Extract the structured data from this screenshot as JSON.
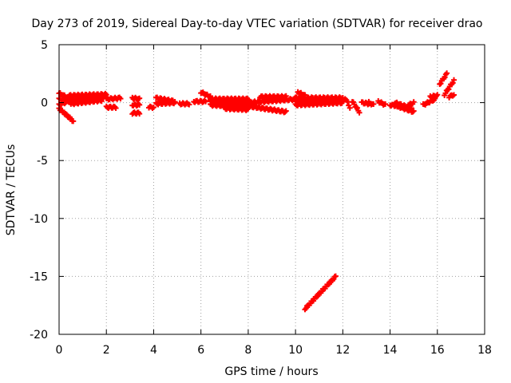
{
  "chart_data": {
    "type": "scatter",
    "title": "Day 273 of 2019, Sidereal Day-to-day VTEC variation (SDTVAR) for receiver drao",
    "xlabel": "GPS time / hours",
    "ylabel": "SDTVAR / TECUs",
    "xlim": [
      0,
      18
    ],
    "ylim": [
      -20,
      5
    ],
    "xticks": [
      0,
      2,
      4,
      6,
      8,
      10,
      12,
      14,
      16,
      18
    ],
    "yticks": [
      5,
      0,
      -5,
      -10,
      -15,
      -20
    ],
    "grid": true,
    "marker": "plus",
    "color": "#ff0000",
    "segments": [
      {
        "x": [
          0.0,
          0.6
        ],
        "y": [
          0.8,
          0.2
        ]
      },
      {
        "x": [
          0.0,
          0.6
        ],
        "y": [
          0.3,
          0.0
        ]
      },
      {
        "x": [
          0.0,
          0.6
        ],
        "y": [
          -0.2,
          0.3
        ]
      },
      {
        "x": [
          0.0,
          0.6
        ],
        "y": [
          -0.5,
          -1.6
        ]
      },
      {
        "x": [
          0.5,
          2.0
        ],
        "y": [
          0.2,
          0.5
        ]
      },
      {
        "x": [
          0.4,
          2.0
        ],
        "y": [
          0.6,
          0.7
        ]
      },
      {
        "x": [
          0.5,
          1.8
        ],
        "y": [
          -0.1,
          0.2
        ]
      },
      {
        "x": [
          2.0,
          2.6
        ],
        "y": [
          0.3,
          0.4
        ]
      },
      {
        "x": [
          2.0,
          2.4
        ],
        "y": [
          -0.4,
          -0.4
        ]
      },
      {
        "x": [
          3.1,
          3.4
        ],
        "y": [
          0.4,
          0.3
        ]
      },
      {
        "x": [
          3.1,
          3.4
        ],
        "y": [
          -0.2,
          -0.2
        ]
      },
      {
        "x": [
          3.1,
          3.4
        ],
        "y": [
          -0.9,
          -0.9
        ]
      },
      {
        "x": [
          3.8,
          4.0
        ],
        "y": [
          -0.4,
          -0.4
        ]
      },
      {
        "x": [
          4.1,
          4.9
        ],
        "y": [
          0.4,
          0.1
        ]
      },
      {
        "x": [
          4.1,
          4.9
        ],
        "y": [
          -0.1,
          0.0
        ]
      },
      {
        "x": [
          5.1,
          5.5
        ],
        "y": [
          -0.1,
          -0.1
        ]
      },
      {
        "x": [
          5.7,
          6.2
        ],
        "y": [
          0.1,
          0.1
        ]
      },
      {
        "x": [
          6.0,
          6.4
        ],
        "y": [
          0.9,
          0.5
        ]
      },
      {
        "x": [
          6.4,
          8.0
        ],
        "y": [
          0.3,
          0.3
        ]
      },
      {
        "x": [
          6.4,
          8.0
        ],
        "y": [
          0.1,
          0.0
        ]
      },
      {
        "x": [
          6.4,
          8.0
        ],
        "y": [
          -0.2,
          -0.4
        ]
      },
      {
        "x": [
          7.0,
          8.0
        ],
        "y": [
          -0.5,
          -0.6
        ]
      },
      {
        "x": [
          8.0,
          9.6
        ],
        "y": [
          -0.3,
          -0.8
        ]
      },
      {
        "x": [
          8.0,
          10.0
        ],
        "y": [
          0.0,
          0.3
        ]
      },
      {
        "x": [
          8.5,
          9.6
        ],
        "y": [
          0.5,
          0.5
        ]
      },
      {
        "x": [
          10.0,
          12.0
        ],
        "y": [
          0.1,
          0.2
        ]
      },
      {
        "x": [
          10.0,
          12.0
        ],
        "y": [
          0.4,
          0.4
        ]
      },
      {
        "x": [
          10.0,
          12.0
        ],
        "y": [
          -0.2,
          0.0
        ]
      },
      {
        "x": [
          10.1,
          10.4
        ],
        "y": [
          0.9,
          0.6
        ]
      },
      {
        "x": [
          10.4,
          11.7
        ],
        "y": [
          -17.8,
          -15.0
        ]
      },
      {
        "x": [
          12.1,
          12.3
        ],
        "y": [
          0.4,
          -0.4
        ]
      },
      {
        "x": [
          12.4,
          12.7
        ],
        "y": [
          0.1,
          -0.8
        ]
      },
      {
        "x": [
          12.8,
          13.1
        ],
        "y": [
          0.0,
          -0.1
        ]
      },
      {
        "x": [
          13.1,
          13.3
        ],
        "y": [
          0.0,
          -0.2
        ]
      },
      {
        "x": [
          13.5,
          13.8
        ],
        "y": [
          0.1,
          -0.2
        ]
      },
      {
        "x": [
          14.0,
          14.4
        ],
        "y": [
          -0.2,
          -0.3
        ]
      },
      {
        "x": [
          14.2,
          14.9
        ],
        "y": [
          0.0,
          -0.5
        ]
      },
      {
        "x": [
          14.3,
          15.0
        ],
        "y": [
          -0.3,
          -0.8
        ]
      },
      {
        "x": [
          14.8,
          15.0
        ],
        "y": [
          -0.2,
          0.0
        ]
      },
      {
        "x": [
          15.4,
          15.9
        ],
        "y": [
          -0.2,
          0.3
        ]
      },
      {
        "x": [
          15.7,
          16.0
        ],
        "y": [
          0.5,
          0.6
        ]
      },
      {
        "x": [
          16.1,
          16.4
        ],
        "y": [
          1.6,
          2.5
        ]
      },
      {
        "x": [
          16.3,
          16.7
        ],
        "y": [
          0.7,
          1.9
        ]
      },
      {
        "x": [
          16.5,
          16.7
        ],
        "y": [
          0.5,
          0.7
        ]
      }
    ]
  }
}
